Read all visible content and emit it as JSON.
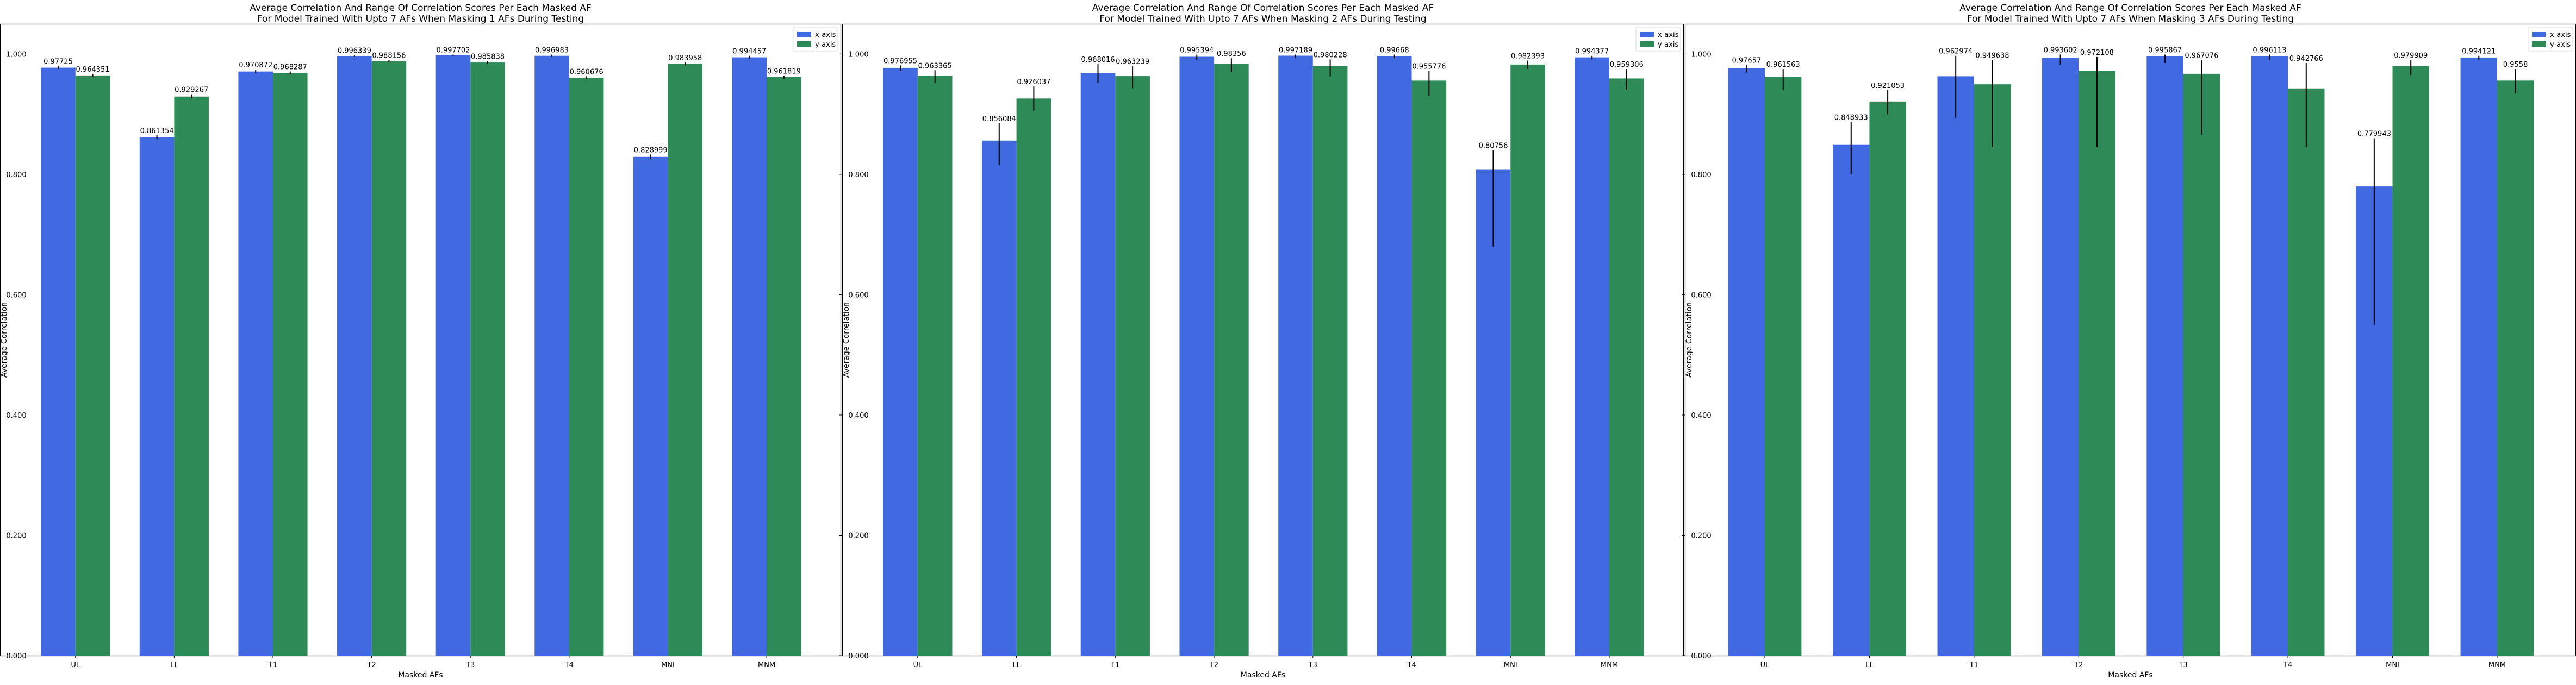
{
  "chart_data": [
    {
      "type": "bar",
      "title_lines": [
        "Average Correlation And Range Of Correlation Scores Per Each Masked AF",
        "For Model Trained With Upto 7 AFs When Masking 1 AFs During Testing"
      ],
      "xlabel": "Masked AFs",
      "ylabel": "Average Correlation",
      "ylim": [
        0,
        1.05
      ],
      "yticks": [
        "0.000",
        "0.200",
        "0.400",
        "0.600",
        "0.800",
        "1.000"
      ],
      "legend_position": "top-right",
      "categories": [
        "UL",
        "LL",
        "T1",
        "T2",
        "T3",
        "T4",
        "MNI",
        "MNM"
      ],
      "series": [
        {
          "name": "x-axis",
          "color": "#4169e1",
          "values": [
            0.97725,
            0.861354,
            0.970872,
            0.996339,
            0.997702,
            0.996983,
            0.828999,
            0.994457
          ],
          "labels": [
            "0.97725",
            "0.861354",
            "0.970872",
            "0.996339",
            "0.997702",
            "0.996983",
            "0.828999",
            "0.994457"
          ],
          "error_ranges": [
            [
              0.975,
              0.98
            ],
            [
              0.858,
              0.865
            ],
            [
              0.968,
              0.974
            ],
            [
              0.995,
              0.998
            ],
            [
              0.996,
              0.999
            ],
            [
              0.995,
              0.999
            ],
            [
              0.825,
              0.833
            ],
            [
              0.992,
              0.997
            ]
          ]
        },
        {
          "name": "y-axis",
          "color": "#2e8b57",
          "values": [
            0.964351,
            0.929267,
            0.968287,
            0.988156,
            0.985838,
            0.960676,
            0.983958,
            0.961819
          ],
          "labels": [
            "0.964351",
            "0.929267",
            "0.968287",
            "0.988156",
            "0.985838",
            "0.960676",
            "0.983958",
            "0.961819"
          ],
          "error_ranges": [
            [
              0.962,
              0.967
            ],
            [
              0.926,
              0.933
            ],
            [
              0.966,
              0.971
            ],
            [
              0.986,
              0.99
            ],
            [
              0.983,
              0.988
            ],
            [
              0.958,
              0.963
            ],
            [
              0.981,
              0.986
            ],
            [
              0.959,
              0.964
            ]
          ]
        }
      ]
    },
    {
      "type": "bar",
      "title_lines": [
        "Average Correlation And Range Of Correlation Scores Per Each Masked AF",
        "For Model Trained With Upto 7 AFs When Masking 2 AFs During Testing"
      ],
      "xlabel": "Masked AFs",
      "ylabel": "Average Correlation",
      "ylim": [
        0,
        1.05
      ],
      "yticks": [
        "0.000",
        "0.200",
        "0.400",
        "0.600",
        "0.800",
        "1.000"
      ],
      "legend_position": "top-right",
      "categories": [
        "UL",
        "LL",
        "T1",
        "T2",
        "T3",
        "T4",
        "MNI",
        "MNM"
      ],
      "series": [
        {
          "name": "x-axis",
          "color": "#4169e1",
          "values": [
            0.976955,
            0.856084,
            0.968016,
            0.995394,
            0.997189,
            0.99668,
            0.80756,
            0.994377
          ],
          "labels": [
            "0.976955",
            "0.856084",
            "0.968016",
            "0.995394",
            "0.997189",
            "0.99668",
            "0.80756",
            "0.994377"
          ],
          "error_ranges": [
            [
              0.972,
              0.981
            ],
            [
              0.815,
              0.885
            ],
            [
              0.952,
              0.983
            ],
            [
              0.99,
              0.999
            ],
            [
              0.993,
              0.999
            ],
            [
              0.993,
              0.999
            ],
            [
              0.68,
              0.84
            ],
            [
              0.991,
              0.997
            ]
          ]
        },
        {
          "name": "y-axis",
          "color": "#2e8b57",
          "values": [
            0.963365,
            0.926037,
            0.963239,
            0.98356,
            0.980228,
            0.955776,
            0.982393,
            0.959306
          ],
          "labels": [
            "0.963365",
            "0.926037",
            "0.963239",
            "0.98356",
            "0.980228",
            "0.955776",
            "0.982393",
            "0.959306"
          ],
          "error_ranges": [
            [
              0.952,
              0.973
            ],
            [
              0.906,
              0.946
            ],
            [
              0.943,
              0.98
            ],
            [
              0.97,
              0.993
            ],
            [
              0.963,
              0.991
            ],
            [
              0.93,
              0.972
            ],
            [
              0.975,
              0.989
            ],
            [
              0.94,
              0.975
            ]
          ]
        }
      ]
    },
    {
      "type": "bar",
      "title_lines": [
        "Average Correlation And Range Of Correlation Scores Per Each Masked AF",
        "For Model Trained With Upto 7 AFs When Masking 3 AFs During Testing"
      ],
      "xlabel": "Masked AFs",
      "ylabel": "Average Correlation",
      "ylim": [
        0,
        1.05
      ],
      "yticks": [
        "0.000",
        "0.200",
        "0.400",
        "0.600",
        "0.800",
        "1.000"
      ],
      "legend_position": "top-right",
      "categories": [
        "UL",
        "LL",
        "T1",
        "T2",
        "T3",
        "T4",
        "MNI",
        "MNM"
      ],
      "series": [
        {
          "name": "x-axis",
          "color": "#4169e1",
          "values": [
            0.97657,
            0.848933,
            0.962974,
            0.993602,
            0.995867,
            0.996113,
            0.779943,
            0.994121
          ],
          "labels": [
            "0.97657",
            "0.848933",
            "0.962974",
            "0.993602",
            "0.995867",
            "0.996113",
            "0.779943",
            "0.994121"
          ],
          "error_ranges": [
            [
              0.969,
              0.982
            ],
            [
              0.8,
              0.887
            ],
            [
              0.894,
              0.997
            ],
            [
              0.982,
              0.999
            ],
            [
              0.985,
              0.999
            ],
            [
              0.99,
              0.999
            ],
            [
              0.55,
              0.86
            ],
            [
              0.99,
              0.997
            ]
          ]
        },
        {
          "name": "y-axis",
          "color": "#2e8b57",
          "values": [
            0.961563,
            0.921053,
            0.949638,
            0.972108,
            0.967076,
            0.942766,
            0.979909,
            0.9558
          ],
          "labels": [
            "0.961563",
            "0.921053",
            "0.949638",
            "0.972108",
            "0.967076",
            "0.942766",
            "0.979909",
            "0.9558"
          ],
          "error_ranges": [
            [
              0.94,
              0.975
            ],
            [
              0.9,
              0.94
            ],
            [
              0.845,
              0.99
            ],
            [
              0.845,
              0.995
            ],
            [
              0.866,
              0.99
            ],
            [
              0.845,
              0.985
            ],
            [
              0.965,
              0.99
            ],
            [
              0.935,
              0.975
            ]
          ]
        }
      ]
    }
  ]
}
